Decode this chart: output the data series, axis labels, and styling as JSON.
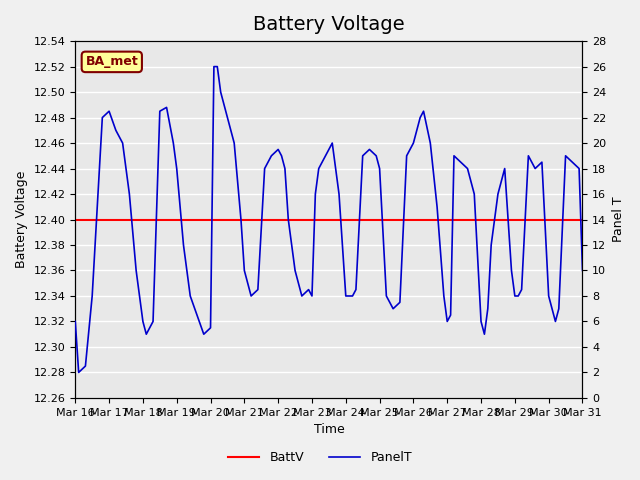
{
  "title": "Battery Voltage",
  "xlabel": "Time",
  "ylabel_left": "Battery Voltage",
  "ylabel_right": "Panel T",
  "ylim_left": [
    12.26,
    12.54
  ],
  "ylim_right": [
    0,
    28
  ],
  "xlim": [
    0,
    15
  ],
  "xtick_labels": [
    "Mar 16",
    "Mar 17",
    "Mar 18",
    "Mar 19",
    "Mar 20",
    "Mar 21",
    "Mar 22",
    "Mar 23",
    "Mar 24",
    "Mar 25",
    "Mar 26",
    "Mar 27",
    "Mar 28",
    "Mar 29",
    "Mar 30",
    "Mar 31"
  ],
  "battv_value": 12.4,
  "battv_color": "#ff0000",
  "panelt_color": "#0000cc",
  "background_color": "#e8e8e8",
  "grid_color": "#ffffff",
  "label_box_text": "BA_met",
  "label_box_facecolor": "#ffff99",
  "label_box_edgecolor": "#800000",
  "legend_battv": "BattV",
  "legend_panelt": "PanelT",
  "title_fontsize": 14,
  "axis_fontsize": 9,
  "tick_fontsize": 8,
  "panelt_data_x": [
    0,
    0.1,
    0.3,
    0.5,
    0.8,
    1.0,
    1.2,
    1.4,
    1.6,
    1.8,
    2.0,
    2.1,
    2.3,
    2.5,
    2.7,
    2.9,
    3.0,
    3.1,
    3.2,
    3.4,
    3.6,
    3.8,
    4.0,
    4.1,
    4.2,
    4.3,
    4.5,
    4.7,
    4.9,
    5.0,
    5.1,
    5.2,
    5.4,
    5.6,
    5.8,
    6.0,
    6.1,
    6.2,
    6.3,
    6.5,
    6.7,
    6.9,
    7.0,
    7.1,
    7.2,
    7.4,
    7.6,
    7.8,
    8.0,
    8.1,
    8.2,
    8.3,
    8.5,
    8.7,
    8.9,
    9.0,
    9.1,
    9.2,
    9.4,
    9.6,
    9.8,
    10.0,
    10.1,
    10.2,
    10.3,
    10.5,
    10.7,
    10.9,
    11.0,
    11.1,
    11.2,
    11.4,
    11.6,
    11.8,
    12.0,
    12.1,
    12.2,
    12.3,
    12.5,
    12.7,
    12.9,
    13.0,
    13.1,
    13.2,
    13.4,
    13.6,
    13.8,
    14.0,
    14.1,
    14.2,
    14.3,
    14.5,
    14.7,
    14.9,
    15.0
  ],
  "panelt_data_y": [
    6,
    2,
    2.5,
    8,
    22,
    22.5,
    21,
    20,
    16,
    10,
    6,
    5,
    6,
    22.5,
    22.8,
    20,
    18,
    15,
    12,
    8,
    6.5,
    5,
    5.5,
    26,
    26,
    24,
    22,
    20,
    14,
    10,
    9,
    8,
    8.5,
    18,
    19,
    19.5,
    19,
    18,
    14,
    10,
    8,
    8.5,
    8,
    16,
    18,
    19,
    20,
    16,
    8,
    8,
    8,
    8.5,
    19,
    19.5,
    19,
    18,
    13,
    8,
    7,
    7.5,
    19,
    20,
    21,
    22,
    22.5,
    20,
    15,
    8,
    6,
    6.5,
    19,
    18.5,
    18,
    16,
    6,
    5,
    7,
    12,
    16,
    18,
    10,
    8,
    8,
    8.5,
    19,
    18,
    18.5,
    8,
    7,
    6,
    7,
    19,
    18.5,
    18,
    10
  ]
}
